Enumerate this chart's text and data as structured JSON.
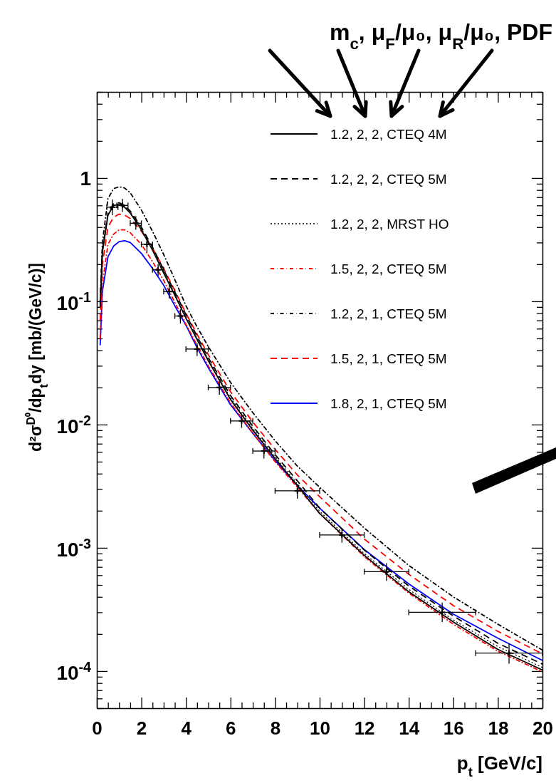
{
  "chart_data": {
    "type": "line",
    "xlabel": "p$_{t}$ [GeV/c]",
    "ylabel": "d²σ$^{D⁰}$/dp$_{t}$dy [mb/(GeV/c)]",
    "annotations": [
      "m$_{c}$, μ$_{F}$/μ₀, μ$_{R}$/μ₀, PDF"
    ],
    "log": "y",
    "legend": "top right",
    "xlim": [
      0,
      20
    ],
    "ylim": [
      5e-05,
      5
    ],
    "xticks": [
      0,
      {
        "value": 0.5,
        "label": null
      },
      {
        "value": 1,
        "label": null
      },
      {
        "value": 1.5,
        "label": null
      },
      2,
      {
        "value": 2.5,
        "label": null
      },
      {
        "value": 3,
        "label": null
      },
      {
        "value": 3.5,
        "label": null
      },
      4,
      {
        "value": 4.5,
        "label": null
      },
      {
        "value": 5,
        "label": null
      },
      {
        "value": 5.5,
        "label": null
      },
      6,
      {
        "value": 6.5,
        "label": null
      },
      {
        "value": 7,
        "label": null
      },
      {
        "value": 7.5,
        "label": null
      },
      8,
      {
        "value": 8.5,
        "label": null
      },
      {
        "value": 9,
        "label": null
      },
      {
        "value": 9.5,
        "label": null
      },
      10,
      {
        "value": 10.5,
        "label": null
      },
      {
        "value": 11,
        "label": null
      },
      {
        "value": 11.5,
        "label": null
      },
      12,
      {
        "value": 12.5,
        "label": null
      },
      {
        "value": 13,
        "label": null
      },
      {
        "value": 13.5,
        "label": null
      },
      14,
      {
        "value": 14.5,
        "label": null
      },
      {
        "value": 15,
        "label": null
      },
      {
        "value": 15.5,
        "label": null
      },
      16,
      {
        "value": 16.5,
        "label": null
      },
      {
        "value": 17,
        "label": null
      },
      {
        "value": 17.5,
        "label": null
      },
      18,
      {
        "value": 18.5,
        "label": null
      },
      {
        "value": 19,
        "label": null
      },
      {
        "value": 19.5,
        "label": null
      },
      20
    ],
    "yticks": [
      {
        "value": 5e-05,
        "label": null
      },
      {
        "value": 6e-05,
        "label": null
      },
      {
        "value": 7e-05,
        "label": null
      },
      {
        "value": 8e-05,
        "label": null
      },
      {
        "value": 9e-05,
        "label": null
      },
      {
        "value": 0.0001,
        "label": "10$^{-4}$"
      },
      {
        "value": 0.0002,
        "label": null
      },
      {
        "value": 0.0003,
        "label": null
      },
      {
        "value": 0.0004,
        "label": null
      },
      {
        "value": 0.0005,
        "label": null
      },
      {
        "value": 0.0006,
        "label": null
      },
      {
        "value": 0.0007,
        "label": null
      },
      {
        "value": 0.0008,
        "label": null
      },
      {
        "value": 0.0009,
        "label": null
      },
      {
        "value": 0.001,
        "label": "10$^{-3}$"
      },
      {
        "value": 0.002,
        "label": null
      },
      {
        "value": 0.003,
        "label": null
      },
      {
        "value": 0.004,
        "label": null
      },
      {
        "value": 0.005,
        "label": null
      },
      {
        "value": 0.006,
        "label": null
      },
      {
        "value": 0.007,
        "label": null
      },
      {
        "value": 0.008,
        "label": null
      },
      {
        "value": 0.009,
        "label": null
      },
      {
        "value": 0.01,
        "label": "10$^{-2}$"
      },
      {
        "value": 0.02,
        "label": null
      },
      {
        "value": 0.03,
        "label": null
      },
      {
        "value": 0.04,
        "label": null
      },
      {
        "value": 0.05,
        "label": null
      },
      {
        "value": 0.06,
        "label": null
      },
      {
        "value": 0.07,
        "label": null
      },
      {
        "value": 0.08,
        "label": null
      },
      {
        "value": 0.09,
        "label": null
      },
      {
        "value": 0.1,
        "label": "10$^{-1}$"
      },
      {
        "value": 0.2,
        "label": null
      },
      {
        "value": 0.3,
        "label": null
      },
      {
        "value": 0.4,
        "label": null
      },
      {
        "value": 0.5,
        "label": null
      },
      {
        "value": 0.6,
        "label": null
      },
      {
        "value": 0.7,
        "label": null
      },
      {
        "value": 0.8,
        "label": null
      },
      {
        "value": 0.9,
        "label": null
      },
      1,
      {
        "value": 2,
        "label": null
      },
      {
        "value": 3,
        "label": null
      },
      {
        "value": 4,
        "label": null
      },
      {
        "value": 5,
        "label": null
      }
    ],
    "x": [
      0.15,
      0.25,
      0.5,
      0.75,
      1,
      1.25,
      1.5,
      2,
      2.5,
      3,
      3.5,
      4,
      4.5,
      5,
      6,
      7,
      8,
      9,
      10,
      12,
      14,
      16,
      18,
      20
    ],
    "series": [
      {
        "name": "1.2, 2, 2, CTEQ 4M",
        "color": "#000000",
        "line_style": "solid",
        "marker": "none",
        "values": [
          0.09,
          0.25,
          0.5,
          0.6,
          0.61,
          0.58,
          0.52,
          0.38,
          0.26,
          0.17,
          0.112,
          0.073,
          0.049,
          0.033,
          0.016,
          0.009,
          0.0053,
          0.0032,
          0.0019,
          0.00087,
          0.00044,
          0.00025,
          0.00015,
          0.000102
        ]
      },
      {
        "name": "1.2, 2, 2, CTEQ 5M",
        "color": "#000000",
        "line_style": "dashed",
        "marker": "none",
        "values": [
          0.095,
          0.26,
          0.52,
          0.62,
          0.63,
          0.6,
          0.54,
          0.4,
          0.275,
          0.18,
          0.119,
          0.078,
          0.052,
          0.035,
          0.0172,
          0.0097,
          0.0057,
          0.0035,
          0.0021,
          0.00096,
          0.00049,
          0.00028,
          0.000168,
          0.000114
        ]
      },
      {
        "name": "1.2, 2, 2, MRST HO",
        "color": "#000000",
        "line_style": "dotted",
        "marker": "none",
        "values": [
          0.09,
          0.25,
          0.5,
          0.6,
          0.62,
          0.59,
          0.53,
          0.39,
          0.265,
          0.175,
          0.115,
          0.075,
          0.05,
          0.034,
          0.0165,
          0.0093,
          0.0055,
          0.0033,
          0.00198,
          0.0009,
          0.00046,
          0.00026,
          0.000158,
          0.000107
        ]
      },
      {
        "name": "1.5, 2, 2, CTEQ 5M",
        "color": "#ff0000",
        "line_style": "dashdot",
        "marker": "none",
        "values": [
          0.05,
          0.14,
          0.29,
          0.35,
          0.38,
          0.38,
          0.36,
          0.29,
          0.21,
          0.148,
          0.098,
          0.065,
          0.044,
          0.03,
          0.015,
          0.0085,
          0.005,
          0.0031,
          0.0019,
          0.00085,
          0.00043,
          0.00024,
          0.000145,
          9.85e-05
        ]
      },
      {
        "name": "1.2, 2, 1, CTEQ 5M",
        "color": "#000000",
        "line_style": "dashdot",
        "marker": "none",
        "values": [
          0.1,
          0.3,
          0.68,
          0.82,
          0.85,
          0.83,
          0.76,
          0.55,
          0.37,
          0.24,
          0.15,
          0.092,
          0.062,
          0.043,
          0.022,
          0.0125,
          0.0074,
          0.0046,
          0.0031,
          0.00145,
          0.00072,
          0.0004,
          0.00024,
          0.000148
        ]
      },
      {
        "name": "1.5, 2, 1, CTEQ 5M",
        "color": "#ff0000",
        "line_style": "dashed",
        "marker": "none",
        "values": [
          0.07,
          0.2,
          0.4,
          0.48,
          0.51,
          0.5,
          0.47,
          0.37,
          0.27,
          0.185,
          0.122,
          0.08,
          0.054,
          0.037,
          0.0185,
          0.0105,
          0.0063,
          0.0039,
          0.0026,
          0.00118,
          0.00061,
          0.00034,
          0.00021,
          0.000138
        ]
      },
      {
        "name": "1.8, 2, 1, CTEQ 5M",
        "color": "#0000ff",
        "line_style": "solid",
        "marker": "none",
        "values": [
          0.044,
          0.12,
          0.23,
          0.28,
          0.305,
          0.31,
          0.3,
          0.245,
          0.185,
          0.135,
          0.092,
          0.064,
          0.042,
          0.029,
          0.0145,
          0.0085,
          0.0051,
          0.0032,
          0.0021,
          0.00097,
          0.00051,
          0.00029,
          0.000185,
          0.000122
        ]
      },
      {
        "type": "scatter",
        "color": "#000000",
        "marker": "cross",
        "x": [
          0.7,
          1.15,
          1.75,
          2.25,
          2.75,
          3.25,
          3.75,
          4.5,
          5.5,
          6.5,
          7.5,
          9,
          11,
          13,
          15.5,
          18.5
        ],
        "values": [
          0.58,
          0.6,
          0.43,
          0.29,
          0.18,
          0.12,
          0.076,
          0.041,
          0.02,
          0.0107,
          0.0061,
          0.0029,
          0.00127,
          0.00064,
          0.0003,
          0.00014
        ],
        "xerrors": [
          0.25,
          0.25,
          0.25,
          0.25,
          0.25,
          0.25,
          0.25,
          0.5,
          0.5,
          0.5,
          0.5,
          1,
          1,
          1,
          1.5,
          1.5
        ],
        "errors": [
          [
            0.5,
            0.67
          ],
          [
            0.53,
            0.68
          ],
          [
            0.38,
            0.49
          ],
          [
            0.25,
            0.33
          ],
          [
            0.16,
            0.2
          ],
          [
            0.105,
            0.135
          ],
          [
            0.066,
            0.086
          ],
          [
            0.036,
            0.046
          ],
          [
            0.0175,
            0.0225
          ],
          [
            0.0094,
            0.012
          ],
          [
            0.0053,
            0.0069
          ],
          [
            0.0025,
            0.0033
          ],
          [
            0.0011,
            0.00145
          ],
          [
            0.00054,
            0.00075
          ],
          [
            0.00025,
            0.00036
          ],
          [
            0.000115,
            0.000168
          ]
        ]
      }
    ]
  }
}
